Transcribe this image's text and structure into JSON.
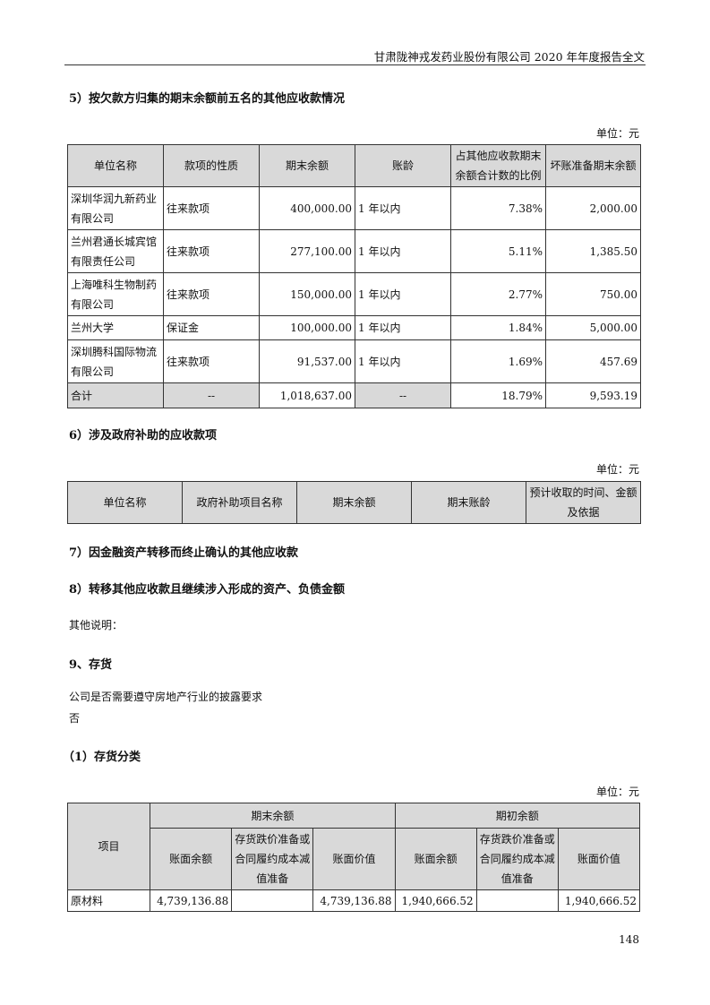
{
  "header": {
    "title": "甘肃陇神戎发药业股份有限公司 2020 年年度报告全文"
  },
  "s5": {
    "title": "5）按欠款方归集的期末余额前五名的其他应收款情况",
    "unit": "单位：元",
    "headers": [
      "单位名称",
      "款项的性质",
      "期末余额",
      "账龄",
      "占其他应收款期末余额合计数的比例",
      "坏账准备期末余额"
    ],
    "rows": [
      [
        "深圳华润九新药业有限公司",
        "往来款项",
        "400,000.00",
        "1 年以内",
        "7.38%",
        "2,000.00"
      ],
      [
        "兰州君通长城宾馆有限责任公司",
        "往来款项",
        "277,100.00",
        "1 年以内",
        "5.11%",
        "1,385.50"
      ],
      [
        "上海唯科生物制药有限公司",
        "往来款项",
        "150,000.00",
        "1 年以内",
        "2.77%",
        "750.00"
      ],
      [
        "兰州大学",
        "保证金",
        "100,000.00",
        "1 年以内",
        "1.84%",
        "5,000.00"
      ],
      [
        "深圳腾科国际物流有限公司",
        "往来款项",
        "91,537.00",
        "1 年以内",
        "1.69%",
        "457.69"
      ]
    ],
    "total": [
      "合计",
      "--",
      "1,018,637.00",
      "--",
      "18.79%",
      "9,593.19"
    ]
  },
  "s6": {
    "title": "6）涉及政府补助的应收款项",
    "unit": "单位：元",
    "headers": [
      "单位名称",
      "政府补助项目名称",
      "期末余额",
      "期末账龄",
      "预计收取的时间、金额及依据"
    ]
  },
  "s7": {
    "title": "7）因金融资产转移而终止确认的其他应收款"
  },
  "s8": {
    "title": "8）转移其他应收款且继续涉入形成的资产、负债金额"
  },
  "other_note": "其他说明：",
  "s9": {
    "title": "9、存货",
    "question": "公司是否需要遵守房地产行业的披露要求",
    "answer": "否"
  },
  "s9_1": {
    "title": "（1）存货分类",
    "unit": "单位：元",
    "headers": {
      "item": "项目",
      "end": "期末余额",
      "begin": "期初余额",
      "sub": [
        "账面余额",
        "存货跌价准备或合同履约成本减值准备",
        "账面价值",
        "账面余额",
        "存货跌价准备或合同履约成本减值准备",
        "账面价值"
      ]
    },
    "rows": [
      [
        "原材料",
        "4,739,136.88",
        "",
        "4,739,136.88",
        "1,940,666.52",
        "",
        "1,940,666.52"
      ]
    ]
  },
  "page_number": "148"
}
